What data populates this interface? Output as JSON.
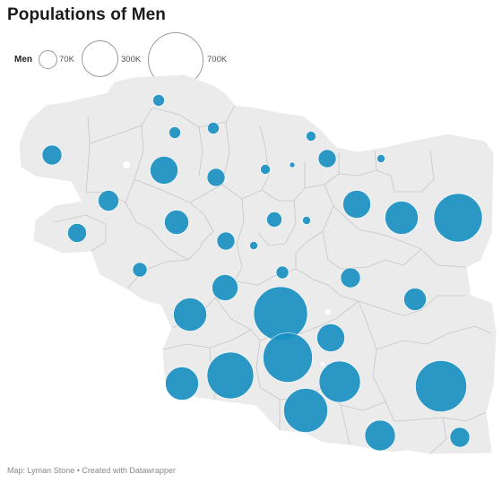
{
  "title": "Populations of Men",
  "legend": {
    "label": "Men",
    "items": [
      {
        "label": "70K",
        "value": 70000
      },
      {
        "label": "300K",
        "value": 300000
      },
      {
        "label": "700K",
        "value": 700000
      }
    ]
  },
  "footer": {
    "source": "Map: Lyman Stone",
    "credit": "Created with Datawrapper",
    "text": "Map: Lyman Stone • Created with Datawrapper"
  },
  "colors": {
    "bubble": "#1a8fc1",
    "land": "#ebebeb",
    "border": "#c4c4c4",
    "background": "#ffffff"
  },
  "map_data": {
    "type": "proportional-symbol-map",
    "symbols_shown": 38,
    "max_value": 700000
  }
}
